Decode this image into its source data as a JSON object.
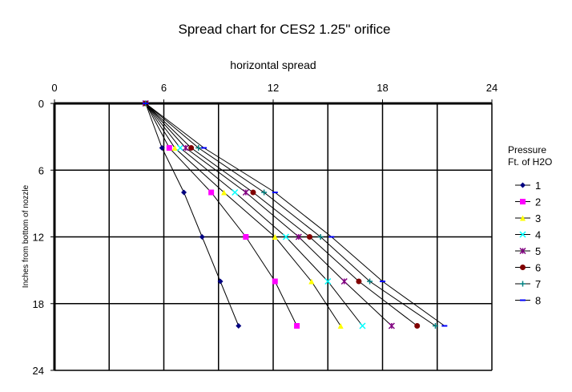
{
  "chart_data": {
    "type": "scatter",
    "title": "Spread chart for CES2  1.25\" orifice",
    "xlabel": "horizontal spread",
    "ylabel": "Inches from bottom of nozzle",
    "xlim": [
      0,
      24
    ],
    "ylim": [
      0,
      24
    ],
    "x_axis_position": "top",
    "y_axis_inverted": true,
    "x_ticks": [
      "0",
      "6",
      "12",
      "18",
      "24"
    ],
    "y_ticks": [
      "0",
      "6",
      "12",
      "18",
      "24"
    ],
    "grid": true,
    "legend": {
      "title_line1": "Pressure",
      "title_line2": "Ft. of H2O",
      "placement": "right"
    },
    "series": [
      {
        "name": "1",
        "color": "#000080",
        "marker": "diamond",
        "points": [
          [
            5,
            0
          ],
          [
            5.9,
            4
          ],
          [
            7.1,
            8
          ],
          [
            8.1,
            12
          ],
          [
            9.1,
            16
          ],
          [
            10.1,
            20
          ]
        ]
      },
      {
        "name": "2",
        "color": "#ff00ff",
        "marker": "square",
        "points": [
          [
            5,
            0
          ],
          [
            6.3,
            4
          ],
          [
            8.6,
            8
          ],
          [
            10.5,
            12
          ],
          [
            12.1,
            16
          ],
          [
            13.3,
            20
          ]
        ]
      },
      {
        "name": "3",
        "color": "#ffff00",
        "marker": "triangle",
        "points": [
          [
            5,
            0
          ],
          [
            6.6,
            4
          ],
          [
            9.3,
            8
          ],
          [
            12.1,
            12
          ],
          [
            14.1,
            16
          ],
          [
            15.7,
            20
          ]
        ]
      },
      {
        "name": "4",
        "color": "#00ffff",
        "marker": "x",
        "points": [
          [
            5,
            0
          ],
          [
            6.9,
            4
          ],
          [
            9.9,
            8
          ],
          [
            12.7,
            12
          ],
          [
            15,
            16
          ],
          [
            16.9,
            20
          ]
        ]
      },
      {
        "name": "5",
        "color": "#800080",
        "marker": "asterisk",
        "points": [
          [
            5,
            0
          ],
          [
            7.2,
            4
          ],
          [
            10.5,
            8
          ],
          [
            13.4,
            12
          ],
          [
            15.9,
            16
          ],
          [
            18.5,
            20
          ]
        ]
      },
      {
        "name": "6",
        "color": "#800000",
        "marker": "circle",
        "points": [
          [
            5,
            0
          ],
          [
            7.5,
            4
          ],
          [
            10.9,
            8
          ],
          [
            14,
            12
          ],
          [
            16.7,
            16
          ],
          [
            19.9,
            20
          ]
        ]
      },
      {
        "name": "7",
        "color": "#008080",
        "marker": "plus",
        "points": [
          [
            5,
            0
          ],
          [
            7.9,
            4
          ],
          [
            11.5,
            8
          ],
          [
            14.6,
            12
          ],
          [
            17.3,
            16
          ],
          [
            20.9,
            20
          ]
        ]
      },
      {
        "name": "8",
        "color": "#0000ff",
        "marker": "dash",
        "points": [
          [
            5,
            0
          ],
          [
            8.2,
            4
          ],
          [
            12.1,
            8
          ],
          [
            15.2,
            12
          ],
          [
            18,
            16
          ],
          [
            21.4,
            20
          ]
        ]
      }
    ]
  }
}
